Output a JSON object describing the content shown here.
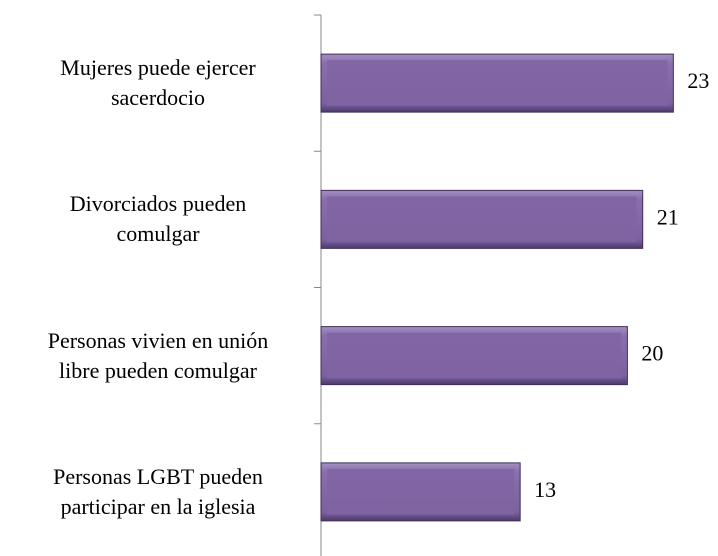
{
  "chart_data": {
    "type": "hbar",
    "categories": [
      "Mujeres puede ejercer\nsacerdocio",
      "Divorciados pueden\ncomulgar",
      "Personas vivien en unión\nlibre pueden comulgar",
      "Personas LGBT pueden\nparticipar en la iglesia"
    ],
    "values": [
      23,
      21,
      20,
      13
    ],
    "color": "#8064a2",
    "xlim": [
      0,
      25
    ]
  }
}
